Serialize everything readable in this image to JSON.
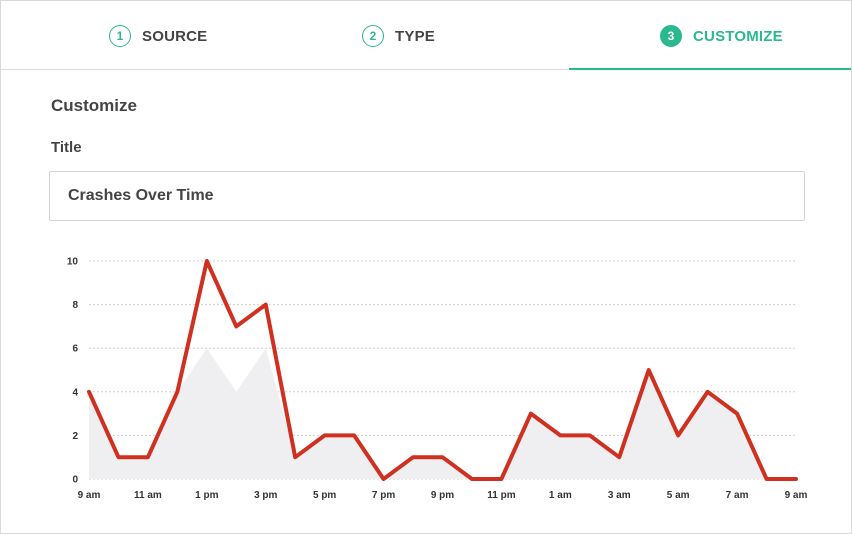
{
  "steps": [
    {
      "number": "1",
      "label": "SOURCE",
      "active": false
    },
    {
      "number": "2",
      "label": "TYPE",
      "active": false
    },
    {
      "number": "3",
      "label": "CUSTOMIZE",
      "active": true
    }
  ],
  "colors": {
    "accent": "#2bb88f",
    "line": "#d0301f",
    "area": "#efeff1"
  },
  "main": {
    "section_title": "Customize",
    "title_label": "Title",
    "title_value": "Crashes Over Time"
  },
  "chart_data": {
    "type": "line",
    "title": "",
    "xlabel": "",
    "ylabel": "",
    "ylim": [
      0,
      10
    ],
    "yticks": [
      0,
      2,
      4,
      6,
      8,
      10
    ],
    "x": [
      "9 am",
      "10 am",
      "11 am",
      "12 pm",
      "1 pm",
      "2 pm",
      "3 pm",
      "4 pm",
      "5 pm",
      "6 pm",
      "7 pm",
      "8 pm",
      "9 pm",
      "10 pm",
      "11 pm",
      "12 am",
      "1 am",
      "2 am",
      "3 am",
      "4 am",
      "5 am",
      "6 am",
      "7 am",
      "8 am",
      "9 am"
    ],
    "xtick_labels": [
      "9 am",
      "",
      "11 am",
      "",
      "1 pm",
      "",
      "3 pm",
      "",
      "5 pm",
      "",
      "7 pm",
      "",
      "9 pm",
      "",
      "11 pm",
      "",
      "1 am",
      "",
      "3 am",
      "",
      "5 am",
      "",
      "7 am",
      "",
      "9 am"
    ],
    "grid": true,
    "series": [
      {
        "values": [
          4,
          1,
          1,
          4,
          10,
          7,
          8,
          1,
          2,
          2,
          0,
          1,
          1,
          0,
          0,
          3,
          2,
          2,
          1,
          5,
          2,
          4,
          3,
          0,
          0
        ]
      },
      {
        "values": [
          4,
          1,
          1,
          4,
          6,
          4,
          6,
          1,
          2,
          2,
          0,
          1,
          1,
          0,
          0,
          3,
          2,
          2,
          1,
          5,
          2,
          4,
          3,
          0,
          0
        ]
      }
    ]
  }
}
